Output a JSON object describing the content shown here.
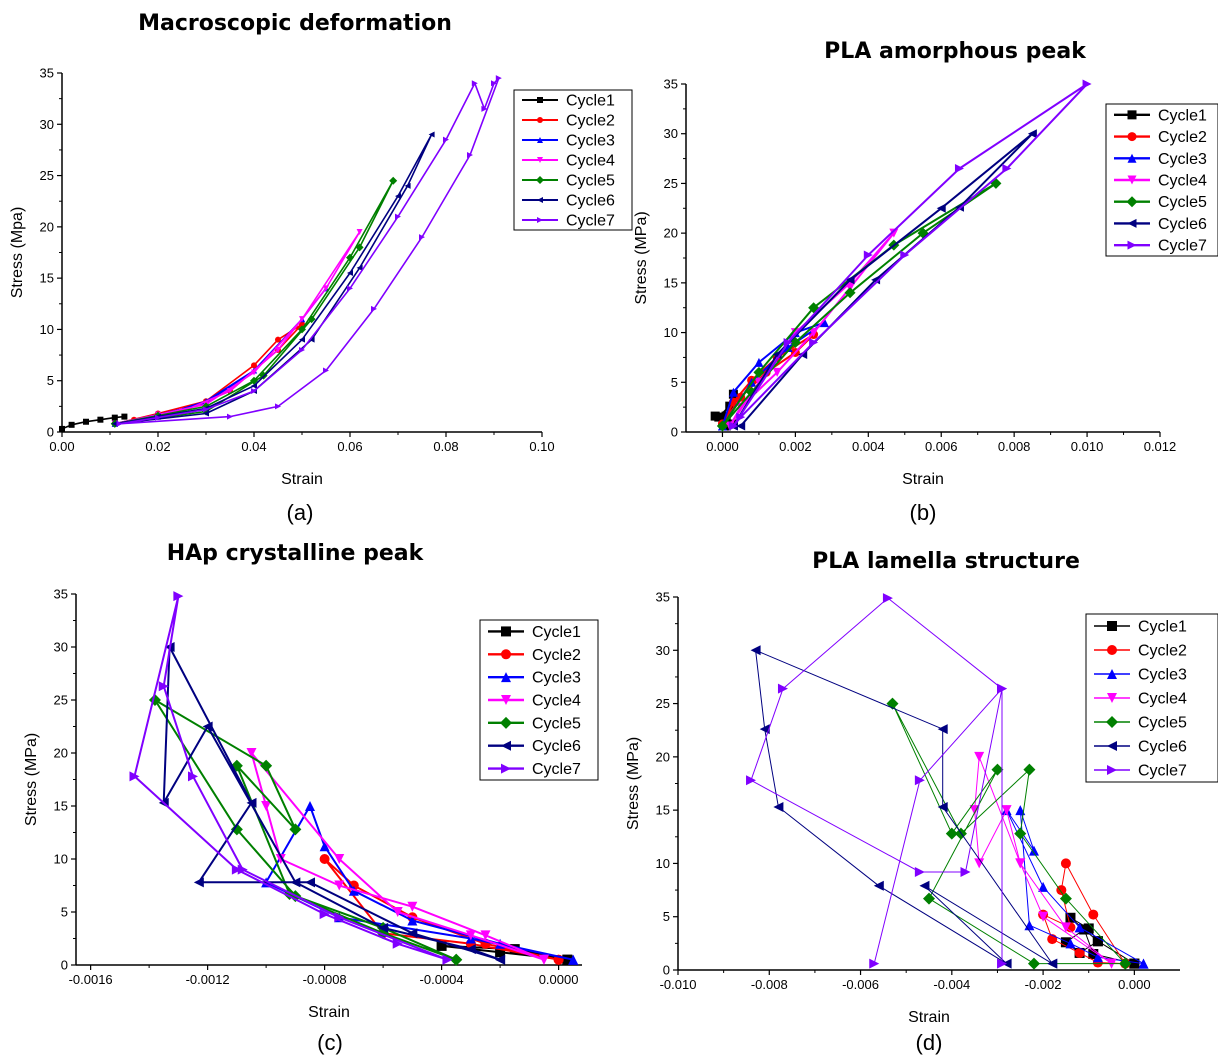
{
  "series_names": [
    "Cycle1",
    "Cycle2",
    "Cycle3",
    "Cycle4",
    "Cycle5",
    "Cycle6",
    "Cycle7"
  ],
  "series_colors": [
    "#000000",
    "#ff0000",
    "#0000ff",
    "#ff00ff",
    "#008000",
    "#000080",
    "#8000ff"
  ],
  "series_markers": [
    "square",
    "circle",
    "triangle-up",
    "triangle-down",
    "diamond",
    "triangle-left",
    "triangle-right"
  ],
  "chart_data": [
    {
      "type": "line",
      "panel": "(a)",
      "title": "Macroscopic deformation",
      "xlabel": "Strain",
      "ylabel": "Stress (Mpa)",
      "xlim": [
        0.0,
        0.1
      ],
      "ylim": [
        0,
        35
      ],
      "xticks": [
        "0.00",
        "0.02",
        "0.04",
        "0.06",
        "0.08",
        "0.10"
      ],
      "yticks": [
        "0",
        "5",
        "10",
        "15",
        "20",
        "25",
        "30",
        "35"
      ],
      "legend_position": "top-right",
      "series": [
        {
          "name": "Cycle1",
          "x": [
            0.0,
            0.002,
            0.005,
            0.008,
            0.011,
            0.013
          ],
          "y": [
            0.3,
            0.7,
            1.0,
            1.2,
            1.4,
            1.5
          ]
        },
        {
          "name": "Cycle2",
          "x": [
            0.011,
            0.02,
            0.03,
            0.04,
            0.045,
            0.05,
            0.045,
            0.035,
            0.025,
            0.015,
            0.011
          ],
          "y": [
            0.8,
            1.8,
            3.0,
            6.5,
            9.0,
            10.5,
            8.0,
            4.0,
            2.0,
            1.2,
            0.8
          ]
        },
        {
          "name": "Cycle3",
          "x": [
            0.011,
            0.02,
            0.03,
            0.04,
            0.05,
            0.055,
            0.05,
            0.04,
            0.03,
            0.02,
            0.011
          ],
          "y": [
            0.8,
            1.7,
            2.8,
            6.0,
            11.0,
            14.0,
            11.0,
            6.0,
            3.0,
            1.5,
            0.8
          ]
        },
        {
          "name": "Cycle4",
          "x": [
            0.011,
            0.02,
            0.03,
            0.04,
            0.05,
            0.062,
            0.055,
            0.045,
            0.035,
            0.025,
            0.011
          ],
          "y": [
            0.8,
            1.7,
            2.7,
            5.8,
            11.0,
            19.5,
            14.0,
            8.0,
            4.0,
            2.0,
            0.8
          ]
        },
        {
          "name": "Cycle5",
          "x": [
            0.011,
            0.02,
            0.03,
            0.04,
            0.05,
            0.06,
            0.069,
            0.062,
            0.052,
            0.042,
            0.03,
            0.011
          ],
          "y": [
            0.8,
            1.6,
            2.5,
            5.0,
            10.0,
            17.0,
            24.5,
            18.0,
            11.0,
            5.5,
            2.0,
            0.8
          ]
        },
        {
          "name": "Cycle6",
          "x": [
            0.011,
            0.02,
            0.03,
            0.04,
            0.05,
            0.06,
            0.07,
            0.077,
            0.072,
            0.062,
            0.052,
            0.04,
            0.03,
            0.011
          ],
          "y": [
            0.8,
            1.5,
            2.3,
            4.5,
            9.0,
            15.5,
            23.0,
            29.0,
            24.0,
            16.0,
            9.0,
            4.0,
            1.8,
            0.8
          ]
        },
        {
          "name": "Cycle7",
          "x": [
            0.012,
            0.02,
            0.03,
            0.04,
            0.05,
            0.06,
            0.07,
            0.08,
            0.086,
            0.088,
            0.09,
            0.091,
            0.085,
            0.075,
            0.065,
            0.055,
            0.045,
            0.035,
            0.012
          ],
          "y": [
            0.8,
            1.4,
            2.2,
            4.0,
            8.0,
            14.0,
            21.0,
            28.5,
            34.0,
            31.5,
            34.0,
            34.5,
            27.0,
            19.0,
            12.0,
            6.0,
            2.5,
            1.5,
            0.8
          ]
        }
      ]
    },
    {
      "type": "line",
      "panel": "(b)",
      "title": "PLA amorphous peak",
      "xlabel": "Strain",
      "ylabel": "Stress (MPa)",
      "xlim": [
        -0.001,
        0.012
      ],
      "ylim": [
        0,
        35
      ],
      "xticks": [
        "0.000",
        "0.002",
        "0.004",
        "0.006",
        "0.008",
        "0.010",
        "0.012"
      ],
      "yticks": [
        "0",
        "5",
        "10",
        "15",
        "20",
        "25",
        "30",
        "35"
      ],
      "legend_position": "top-right",
      "series": [
        {
          "name": "Cycle1",
          "x": [
            -0.0002,
            0.0001,
            0.0003,
            0.0002,
            -0.0001,
            0.0001,
            0.0003,
            0.0001
          ],
          "y": [
            1.6,
            1.4,
            3.8,
            2.6,
            1.5,
            0.6,
            0.8,
            1.6
          ]
        },
        {
          "name": "Cycle2",
          "x": [
            0.0,
            0.0003,
            0.0008,
            0.0015,
            0.0025,
            0.002,
            0.0012,
            0.0005,
            0.0
          ],
          "y": [
            0.8,
            3.0,
            5.2,
            7.5,
            9.8,
            8.0,
            6.0,
            3.5,
            0.8
          ]
        },
        {
          "name": "Cycle3",
          "x": [
            0.0,
            0.0008,
            0.0018,
            0.0028,
            0.002,
            0.001,
            0.0003,
            0.0
          ],
          "y": [
            0.6,
            5.0,
            8.5,
            11.0,
            10.0,
            7.0,
            4.0,
            0.6
          ]
        },
        {
          "name": "Cycle4",
          "x": [
            0.0002,
            0.001,
            0.002,
            0.0035,
            0.0047,
            0.0035,
            0.0025,
            0.0015,
            0.0005,
            0.0002
          ],
          "y": [
            0.6,
            5.0,
            10.0,
            15.0,
            20.0,
            14.5,
            10.0,
            6.0,
            2.5,
            0.6
          ]
        },
        {
          "name": "Cycle5",
          "x": [
            0.0,
            0.001,
            0.0025,
            0.0047,
            0.0075,
            0.0055,
            0.0035,
            0.002,
            0.0008,
            0.0
          ],
          "y": [
            0.6,
            6.0,
            12.5,
            18.8,
            25.0,
            20.0,
            14.0,
            9.0,
            4.0,
            0.6
          ]
        },
        {
          "name": "Cycle6",
          "x": [
            0.0003,
            0.0015,
            0.0035,
            0.006,
            0.0085,
            0.0065,
            0.0042,
            0.0022,
            0.0005,
            0.0003
          ],
          "y": [
            0.6,
            7.8,
            15.3,
            22.5,
            30.0,
            22.6,
            15.3,
            7.8,
            0.6,
            0.6
          ]
        },
        {
          "name": "Cycle7",
          "x": [
            0.0003,
            0.0018,
            0.004,
            0.0065,
            0.01,
            0.0078,
            0.005,
            0.0025,
            0.0005,
            0.0003
          ],
          "y": [
            0.6,
            9.0,
            17.8,
            26.5,
            35.0,
            26.5,
            17.8,
            9.0,
            1.5,
            0.6
          ]
        }
      ]
    },
    {
      "type": "line",
      "panel": "(c)",
      "title": "HAp crystalline peak",
      "xlabel": "Strain",
      "ylabel": "Stress (MPa)",
      "xlim": [
        -0.00165,
        8e-05
      ],
      "ylim": [
        0,
        35
      ],
      "xticks": [
        "-0.0016",
        "-0.0012",
        "-0.0008",
        "-0.0004",
        "0.0000"
      ],
      "xtickvals": [
        -0.0016,
        -0.0012,
        -0.0008,
        -0.0004,
        0.0
      ],
      "yticks": [
        "0",
        "5",
        "10",
        "15",
        "20",
        "25",
        "30",
        "35"
      ],
      "legend_position": "top-right",
      "series": [
        {
          "name": "Cycle1",
          "x": [
            3e-05,
            -0.00015,
            -0.0004,
            -0.0002,
            3e-05
          ],
          "y": [
            0.5,
            1.5,
            1.8,
            1.2,
            0.5
          ]
        },
        {
          "name": "Cycle2",
          "x": [
            0.0,
            -0.0003,
            -0.0006,
            -0.0008,
            -0.0007,
            -0.0005,
            -0.00025,
            0.0
          ],
          "y": [
            0.5,
            2.0,
            3.0,
            10.0,
            7.5,
            4.5,
            2.0,
            0.5
          ]
        },
        {
          "name": "Cycle3",
          "x": [
            5e-05,
            -0.0003,
            -0.00075,
            -0.001,
            -0.00085,
            -0.0008,
            -0.0007,
            -0.0005,
            -0.0002,
            5e-05
          ],
          "y": [
            0.5,
            2.5,
            4.5,
            7.8,
            15.0,
            11.2,
            7.0,
            4.2,
            2.0,
            0.5
          ]
        },
        {
          "name": "Cycle4",
          "x": [
            -5e-05,
            -0.0003,
            -0.00055,
            -0.00075,
            -0.00105,
            -0.001,
            -0.00095,
            -0.00075,
            -0.0005,
            -0.00025,
            -5e-05
          ],
          "y": [
            0.5,
            2.8,
            5.0,
            10.0,
            20.0,
            15.0,
            10.0,
            7.5,
            5.5,
            2.8,
            0.5
          ]
        },
        {
          "name": "Cycle5",
          "x": [
            -0.00035,
            -0.0006,
            -0.0009,
            -0.0011,
            -0.00138,
            -0.001,
            -0.0009,
            -0.0011,
            -0.00092,
            -0.0006,
            -0.00035
          ],
          "y": [
            0.5,
            3.5,
            6.5,
            12.8,
            25.0,
            18.8,
            12.8,
            18.8,
            6.7,
            3.0,
            0.5
          ]
        },
        {
          "name": "Cycle6",
          "x": [
            -0.0002,
            -0.0005,
            -0.00085,
            -0.00123,
            -0.00105,
            -0.00133,
            -0.00135,
            -0.0012,
            -0.0009,
            -0.0006,
            -0.0003,
            -0.0002
          ],
          "y": [
            0.5,
            3.0,
            7.8,
            7.8,
            15.3,
            30.0,
            15.3,
            22.5,
            7.8,
            3.5,
            1.5,
            0.5
          ]
        },
        {
          "name": "Cycle7",
          "x": [
            -0.00038,
            -0.00075,
            -0.00108,
            -0.00125,
            -0.00135,
            -0.0013,
            -0.00145,
            -0.0011,
            -0.0008,
            -0.00055,
            -0.00038
          ],
          "y": [
            0.5,
            4.5,
            9.0,
            17.8,
            26.3,
            34.8,
            17.8,
            9.0,
            4.8,
            2.0,
            0.5
          ]
        }
      ]
    },
    {
      "type": "line",
      "panel": "(d)",
      "title": "PLA lamella structure",
      "xlabel": "Strain",
      "ylabel": "Stress (MPa)",
      "xlim": [
        -0.01,
        0.001
      ],
      "ylim": [
        0,
        35
      ],
      "xticks": [
        "-0.010",
        "-0.008",
        "-0.006",
        "-0.004",
        "-0.002",
        "0.000"
      ],
      "xtickvals": [
        -0.01,
        -0.008,
        -0.006,
        -0.004,
        -0.002,
        0.0
      ],
      "yticks": [
        "0",
        "5",
        "10",
        "15",
        "20",
        "25",
        "30",
        "35"
      ],
      "legend_position": "top-right",
      "series": [
        {
          "name": "Cycle1",
          "x": [
            0.0,
            -0.0008,
            -0.0014,
            -0.001,
            -0.0008,
            -0.0012,
            -0.0015,
            -0.0011,
            -0.0009,
            0.0
          ],
          "y": [
            0.6,
            2.7,
            4.9,
            3.9,
            2.7,
            1.6,
            2.6,
            3.8,
            1.5,
            0.6
          ]
        },
        {
          "name": "Cycle2",
          "x": [
            -0.0002,
            -0.0009,
            -0.0015,
            -0.0016,
            -0.0014,
            -0.002,
            -0.0018,
            -0.0012,
            -0.0008,
            -0.0002
          ],
          "y": [
            0.6,
            5.2,
            10.0,
            7.5,
            4.0,
            5.2,
            2.9,
            1.6,
            0.7,
            0.6
          ]
        },
        {
          "name": "Cycle3",
          "x": [
            0.0002,
            -0.0012,
            -0.002,
            -0.0028,
            -0.0022,
            -0.0025,
            -0.0023,
            -0.0014,
            -0.0008,
            0.0002
          ],
          "y": [
            0.6,
            4.0,
            7.8,
            15.0,
            11.2,
            15.0,
            4.2,
            2.5,
            1.2,
            0.6
          ]
        },
        {
          "name": "Cycle4",
          "x": [
            -0.0005,
            -0.002,
            -0.0025,
            -0.0034,
            -0.0035,
            -0.0034,
            -0.0028,
            -0.0025,
            -0.0015,
            -0.0005
          ],
          "y": [
            0.6,
            5.0,
            10.0,
            20.0,
            15.0,
            10.0,
            15.0,
            10.0,
            4.0,
            0.6
          ]
        },
        {
          "name": "Cycle5",
          "x": [
            -0.0002,
            -0.0015,
            -0.0025,
            -0.0023,
            -0.0038,
            -0.0053,
            -0.004,
            -0.003,
            -0.0045,
            -0.0022,
            -0.0002
          ],
          "y": [
            0.6,
            6.7,
            12.8,
            18.8,
            12.8,
            25.0,
            12.8,
            18.8,
            6.7,
            0.6,
            0.6
          ]
        },
        {
          "name": "Cycle6",
          "x": [
            -0.0018,
            -0.0042,
            -0.0042,
            -0.0083,
            -0.0081,
            -0.0078,
            -0.0056,
            -0.0028,
            -0.0046,
            -0.0018
          ],
          "y": [
            0.6,
            15.3,
            22.6,
            30.0,
            22.6,
            15.3,
            7.9,
            0.6,
            7.9,
            0.6
          ]
        },
        {
          "name": "Cycle7",
          "x": [
            -0.0057,
            -0.0047,
            -0.0029,
            -0.0054,
            -0.0077,
            -0.0084,
            -0.0047,
            -0.0037,
            -0.0029,
            -0.0029
          ],
          "y": [
            0.6,
            17.8,
            26.4,
            34.9,
            26.4,
            17.8,
            9.2,
            9.2,
            26.4,
            0.6
          ]
        }
      ]
    }
  ]
}
